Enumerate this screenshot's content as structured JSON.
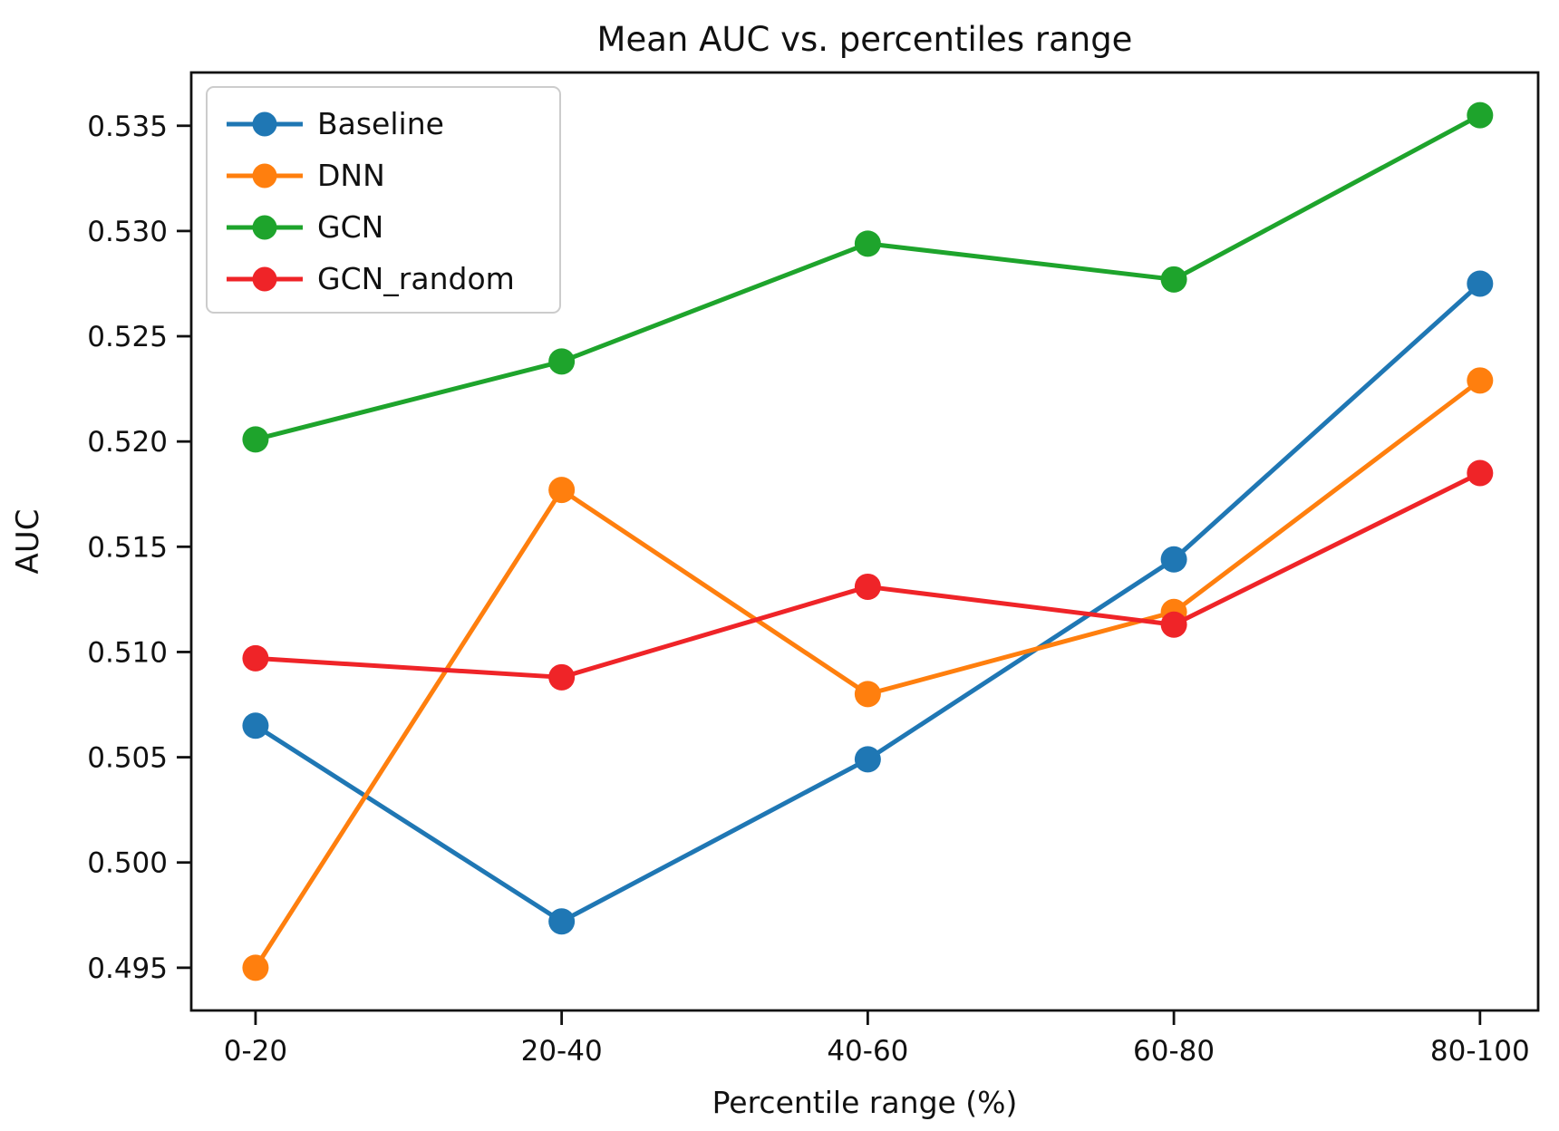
{
  "chart_data": {
    "type": "line",
    "title": "Mean AUC vs. percentiles range",
    "xlabel": "Percentile range (%)",
    "ylabel": "AUC",
    "categories": [
      "0-20",
      "20-40",
      "40-60",
      "60-80",
      "80-100"
    ],
    "series": [
      {
        "name": "Baseline",
        "color": "#1f77b4",
        "values": [
          0.5065,
          0.4972,
          0.5049,
          0.5144,
          0.5275
        ]
      },
      {
        "name": "DNN",
        "color": "#ff7f0e",
        "values": [
          0.495,
          0.5177,
          0.508,
          0.5119,
          0.5229
        ]
      },
      {
        "name": "GCN",
        "color": "#1ea42c",
        "values": [
          0.5201,
          0.5238,
          0.5294,
          0.5277,
          0.5355
        ]
      },
      {
        "name": "GCN_random",
        "color": "#ef2428",
        "values": [
          0.5097,
          0.5088,
          0.5131,
          0.5113,
          0.5185
        ]
      }
    ],
    "yticks": [
      0.495,
      0.5,
      0.505,
      0.51,
      0.515,
      0.52,
      0.525,
      0.53,
      0.535
    ],
    "ytick_labels": [
      "0.495",
      "0.500",
      "0.505",
      "0.510",
      "0.515",
      "0.520",
      "0.525",
      "0.530",
      "0.535"
    ],
    "ylim": [
      0.49297,
      0.53753
    ],
    "grid": false,
    "legend_position": "upper left",
    "marker": "o",
    "frame_color": "#111111",
    "legend_border_color": "#cccccc"
  }
}
